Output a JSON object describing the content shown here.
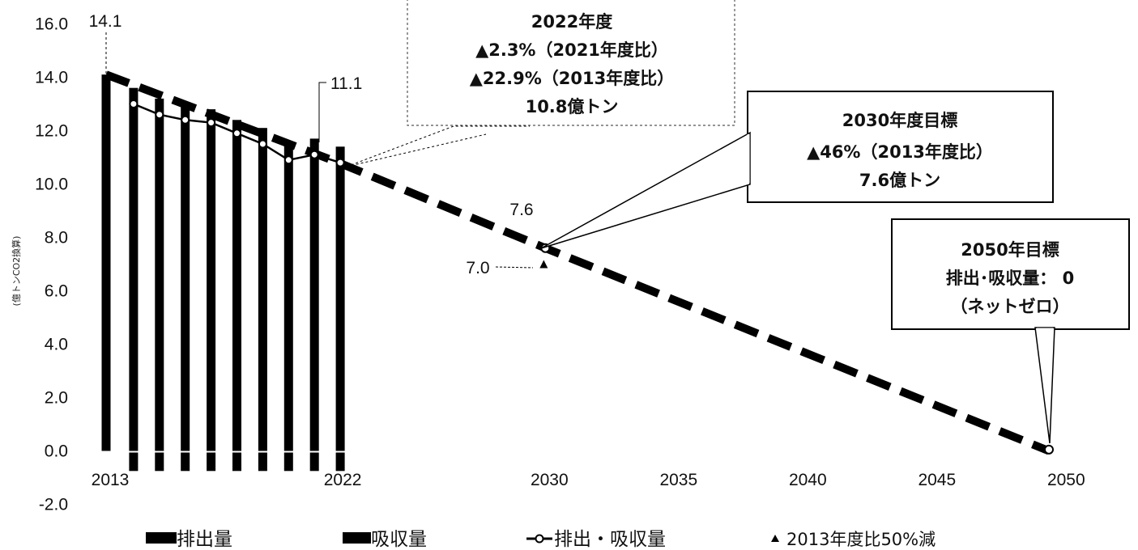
{
  "chart_data": {
    "type": "bar",
    "ylabel": "(億トンCO2換算)",
    "ylim": [
      -2.0,
      16.0
    ],
    "y_ticks": [
      "16.0",
      "14.0",
      "12.0",
      "10.0",
      "8.0",
      "6.0",
      "4.0",
      "2.0",
      "0.0",
      "-2.0"
    ],
    "x_ticks": [
      "2013",
      "2022",
      "2030",
      "2035",
      "2040",
      "2045",
      "2050"
    ],
    "grid": false,
    "legend_position": "bottom",
    "years": [
      2013,
      2014,
      2015,
      2016,
      2017,
      2018,
      2019,
      2020,
      2021,
      2022
    ],
    "series": [
      {
        "name": "排出量",
        "kind": "bar",
        "values": [
          14.1,
          13.6,
          13.2,
          12.9,
          12.8,
          12.4,
          12.1,
          11.5,
          11.7,
          11.4
        ]
      },
      {
        "name": "吸収量",
        "kind": "bar",
        "values": [
          -0.6,
          -0.6,
          -0.6,
          -0.6,
          -0.6,
          -0.6,
          -0.6,
          -0.6,
          -0.6,
          -0.6
        ]
      },
      {
        "name": "排出・吸収量",
        "kind": "line",
        "x": [
          2014,
          2015,
          2016,
          2017,
          2018,
          2019,
          2020,
          2021,
          2022
        ],
        "values": [
          13.0,
          12.6,
          12.4,
          12.3,
          11.9,
          11.5,
          10.9,
          11.1,
          10.8
        ]
      },
      {
        "name": "2013年度比50%減",
        "kind": "marker",
        "x": [
          2030
        ],
        "values": [
          7.0
        ]
      }
    ],
    "target_path": {
      "x": [
        2013,
        2022,
        2030,
        2050
      ],
      "values": [
        14.1,
        10.8,
        7.6,
        0.0
      ]
    },
    "data_labels": [
      {
        "text": "14.1",
        "x": 2013,
        "y": 14.1
      },
      {
        "text": "11.1",
        "x": 2021,
        "y": 11.1
      },
      {
        "text": "7.6",
        "x": 2030,
        "y": 7.6
      },
      {
        "text": "7.0",
        "x": 2030,
        "y": 7.0
      }
    ],
    "annotations": [
      {
        "lines": [
          "2022年度",
          "▲2.3%（2021年度比）",
          "▲22.9%（2013年度比）",
          "10.8億トン"
        ],
        "style": "dashed"
      },
      {
        "lines": [
          "2030年度目標",
          "▲46%（2013年度比）",
          "7.6億トン"
        ],
        "style": "solid"
      },
      {
        "lines": [
          "2050年目標",
          "排出･吸収量： 0",
          "（ネットゼロ）"
        ],
        "style": "solid"
      }
    ],
    "legend": [
      "排出量",
      "吸収量",
      "排出・吸収量",
      "2013年度比50%減"
    ]
  }
}
